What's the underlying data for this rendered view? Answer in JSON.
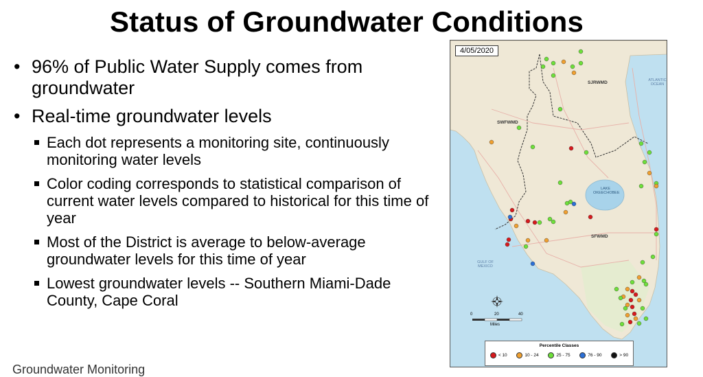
{
  "slide": {
    "title": "Status of Groundwater Conditions",
    "bullets": [
      {
        "text": "96% of Public Water Supply comes from groundwater",
        "level": 1
      },
      {
        "text": "Real-time groundwater levels",
        "level": 1
      },
      {
        "text": "Each dot represents a monitoring site, continuously monitoring water levels",
        "level": 2
      },
      {
        "text": "Color coding corresponds to statistical comparison of current water levels compared to historical for this time of year",
        "level": 2
      },
      {
        "text": "Most of the District is average to below-average groundwater levels for this time of year",
        "level": 2
      },
      {
        "text": "Lowest groundwater levels -- Southern Miami-Dade County, Cape Coral",
        "level": 2
      }
    ],
    "footer_fragment": "Groundwater Monitoring"
  },
  "map": {
    "date": "4/05/2020",
    "region_labels": {
      "sjrwmd": "SJRWMD",
      "swfwmd": "SWFWMD",
      "sfwmd": "SFWMD",
      "lake": "LAKE OKEECHOBEE",
      "atlantic": "ATLANTIC OCEAN",
      "gulf": "GULF OF MEXICO"
    },
    "scale": {
      "ticks": [
        "0",
        "20",
        "40"
      ],
      "unit": "Miles"
    },
    "legend": {
      "title": "Percentile Classes",
      "classes": [
        {
          "label": "< 10",
          "color": "#d7191c"
        },
        {
          "label": "10 - 24",
          "color": "#f0a030"
        },
        {
          "label": "25 - 75",
          "color": "#6ee03a"
        },
        {
          "label": "76 - 90",
          "color": "#2b6fd6"
        },
        {
          "label": "> 90",
          "color": "#111111"
        }
      ]
    },
    "colors": {
      "land": "#efe8d6",
      "water": "#bfe0f0",
      "lake": "#a8d3ea"
    }
  }
}
